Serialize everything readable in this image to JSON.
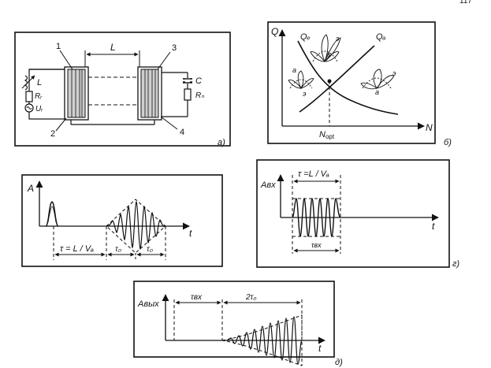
{
  "page_number": "117",
  "panel_a": {
    "tag": "а)",
    "n1": "1",
    "n2": "2",
    "n3": "3",
    "n4": "4",
    "L_top": "L",
    "L_ind": "L",
    "Rr": "Rᵣ",
    "Ur": "Uᵣ",
    "C": "C",
    "Rn": "Rₙ"
  },
  "panel_b": {
    "tag": "б)",
    "Q": "Q",
    "Qe": "Qₑ",
    "Qa": "Qₐ",
    "N": "N",
    "Nopt": "N",
    "Nopt_sub": "opt",
    "a": "а",
    "e": "э"
  },
  "panel_c": {
    "A": "A",
    "t": "t",
    "tau": "τ = L / Vₐ",
    "tau0a": "τ₀",
    "tau0b": "τ₀"
  },
  "panel_d": {
    "tag": "г)",
    "Avx": "Aвх",
    "t": "t",
    "tau": "τ =L / Vₐ",
    "tau_vx": "τвх"
  },
  "panel_e": {
    "tag": "д)",
    "Avyx": "Aвых",
    "t": "t",
    "tau_vx": "τвх",
    "two_tau0": "2τ₀"
  }
}
